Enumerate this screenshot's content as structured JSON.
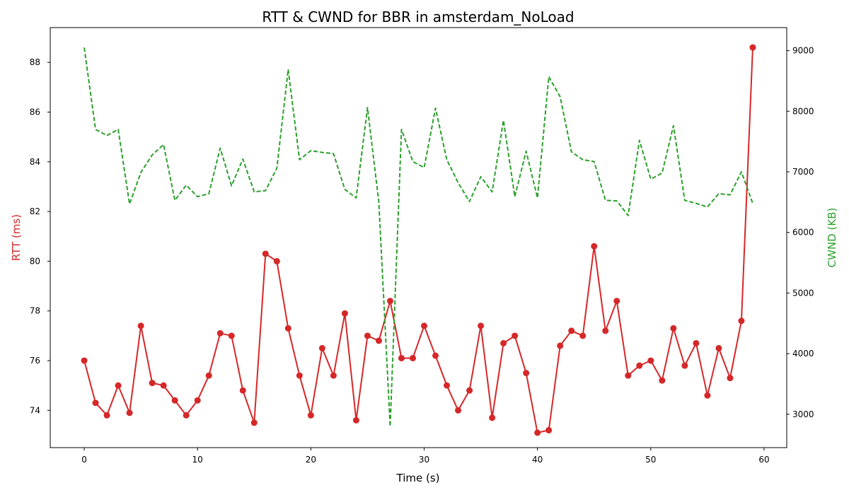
{
  "chart_data": {
    "type": "line",
    "title": "RTT & CWND for BBR in amsterdam_NoLoad",
    "xlabel": "Time (s)",
    "ylabel_left": "RTT (ms)",
    "ylabel_right": "CWND (KB)",
    "xlim": [
      -3,
      62
    ],
    "ylim_left": [
      72.5,
      89.4
    ],
    "ylim_right": [
      2450,
      9380
    ],
    "x_ticks": [
      0,
      10,
      20,
      30,
      40,
      50,
      60
    ],
    "y_ticks_left": [
      74,
      76,
      78,
      80,
      82,
      84,
      86,
      88
    ],
    "y_ticks_right": [
      3000,
      4000,
      5000,
      6000,
      7000,
      8000,
      9000
    ],
    "grid": false,
    "x": [
      0,
      1,
      2,
      3,
      4,
      5,
      6,
      7,
      8,
      9,
      10,
      11,
      12,
      13,
      14,
      15,
      16,
      17,
      18,
      19,
      20,
      21,
      22,
      23,
      24,
      25,
      26,
      27,
      28,
      29,
      30,
      31,
      32,
      33,
      34,
      35,
      36,
      37,
      38,
      39,
      40,
      41,
      42,
      43,
      44,
      45,
      46,
      47,
      48,
      49,
      50,
      51,
      52,
      53,
      54,
      55,
      56,
      57,
      58,
      59
    ],
    "series": [
      {
        "axis": "left",
        "color": "#d62728",
        "style": "solid-with-markers",
        "values": [
          76.0,
          74.3,
          73.8,
          75.0,
          73.9,
          77.4,
          75.1,
          75.0,
          74.4,
          73.8,
          74.4,
          75.4,
          77.1,
          77.0,
          74.8,
          73.5,
          80.3,
          80.0,
          77.3,
          75.4,
          73.8,
          76.5,
          75.4,
          77.9,
          73.6,
          77.0,
          76.8,
          78.4,
          76.1,
          76.1,
          77.4,
          76.2,
          75.0,
          74.0,
          74.8,
          77.4,
          73.7,
          76.7,
          77.0,
          75.5,
          73.1,
          73.2,
          76.6,
          77.2,
          77.0,
          80.6,
          77.2,
          78.4,
          75.4,
          75.8,
          76.0,
          75.2,
          77.3,
          75.8,
          76.7,
          74.6,
          76.5,
          75.3,
          77.6,
          88.6
        ]
      },
      {
        "axis": "right",
        "color": "#2ca02c",
        "style": "dashed",
        "values": [
          9050,
          7700,
          7600,
          7700,
          6470,
          6990,
          7280,
          7450,
          6530,
          6780,
          6590,
          6640,
          7390,
          6770,
          7210,
          6670,
          6690,
          7060,
          8690,
          7200,
          7350,
          7320,
          7300,
          6710,
          6570,
          8060,
          6500,
          2800,
          7700,
          7170,
          7070,
          8050,
          7200,
          6820,
          6510,
          6920,
          6670,
          7850,
          6590,
          7340,
          6570,
          8570,
          8240,
          7330,
          7200,
          7170,
          6530,
          6520,
          6280,
          7520,
          6880,
          6980,
          7760,
          6530,
          6480,
          6420,
          6640,
          6620,
          7000,
          6480
        ]
      }
    ],
    "colors": {
      "rtt_axis_label": "#d62728",
      "cwnd_axis_label": "#2ca02c"
    }
  }
}
